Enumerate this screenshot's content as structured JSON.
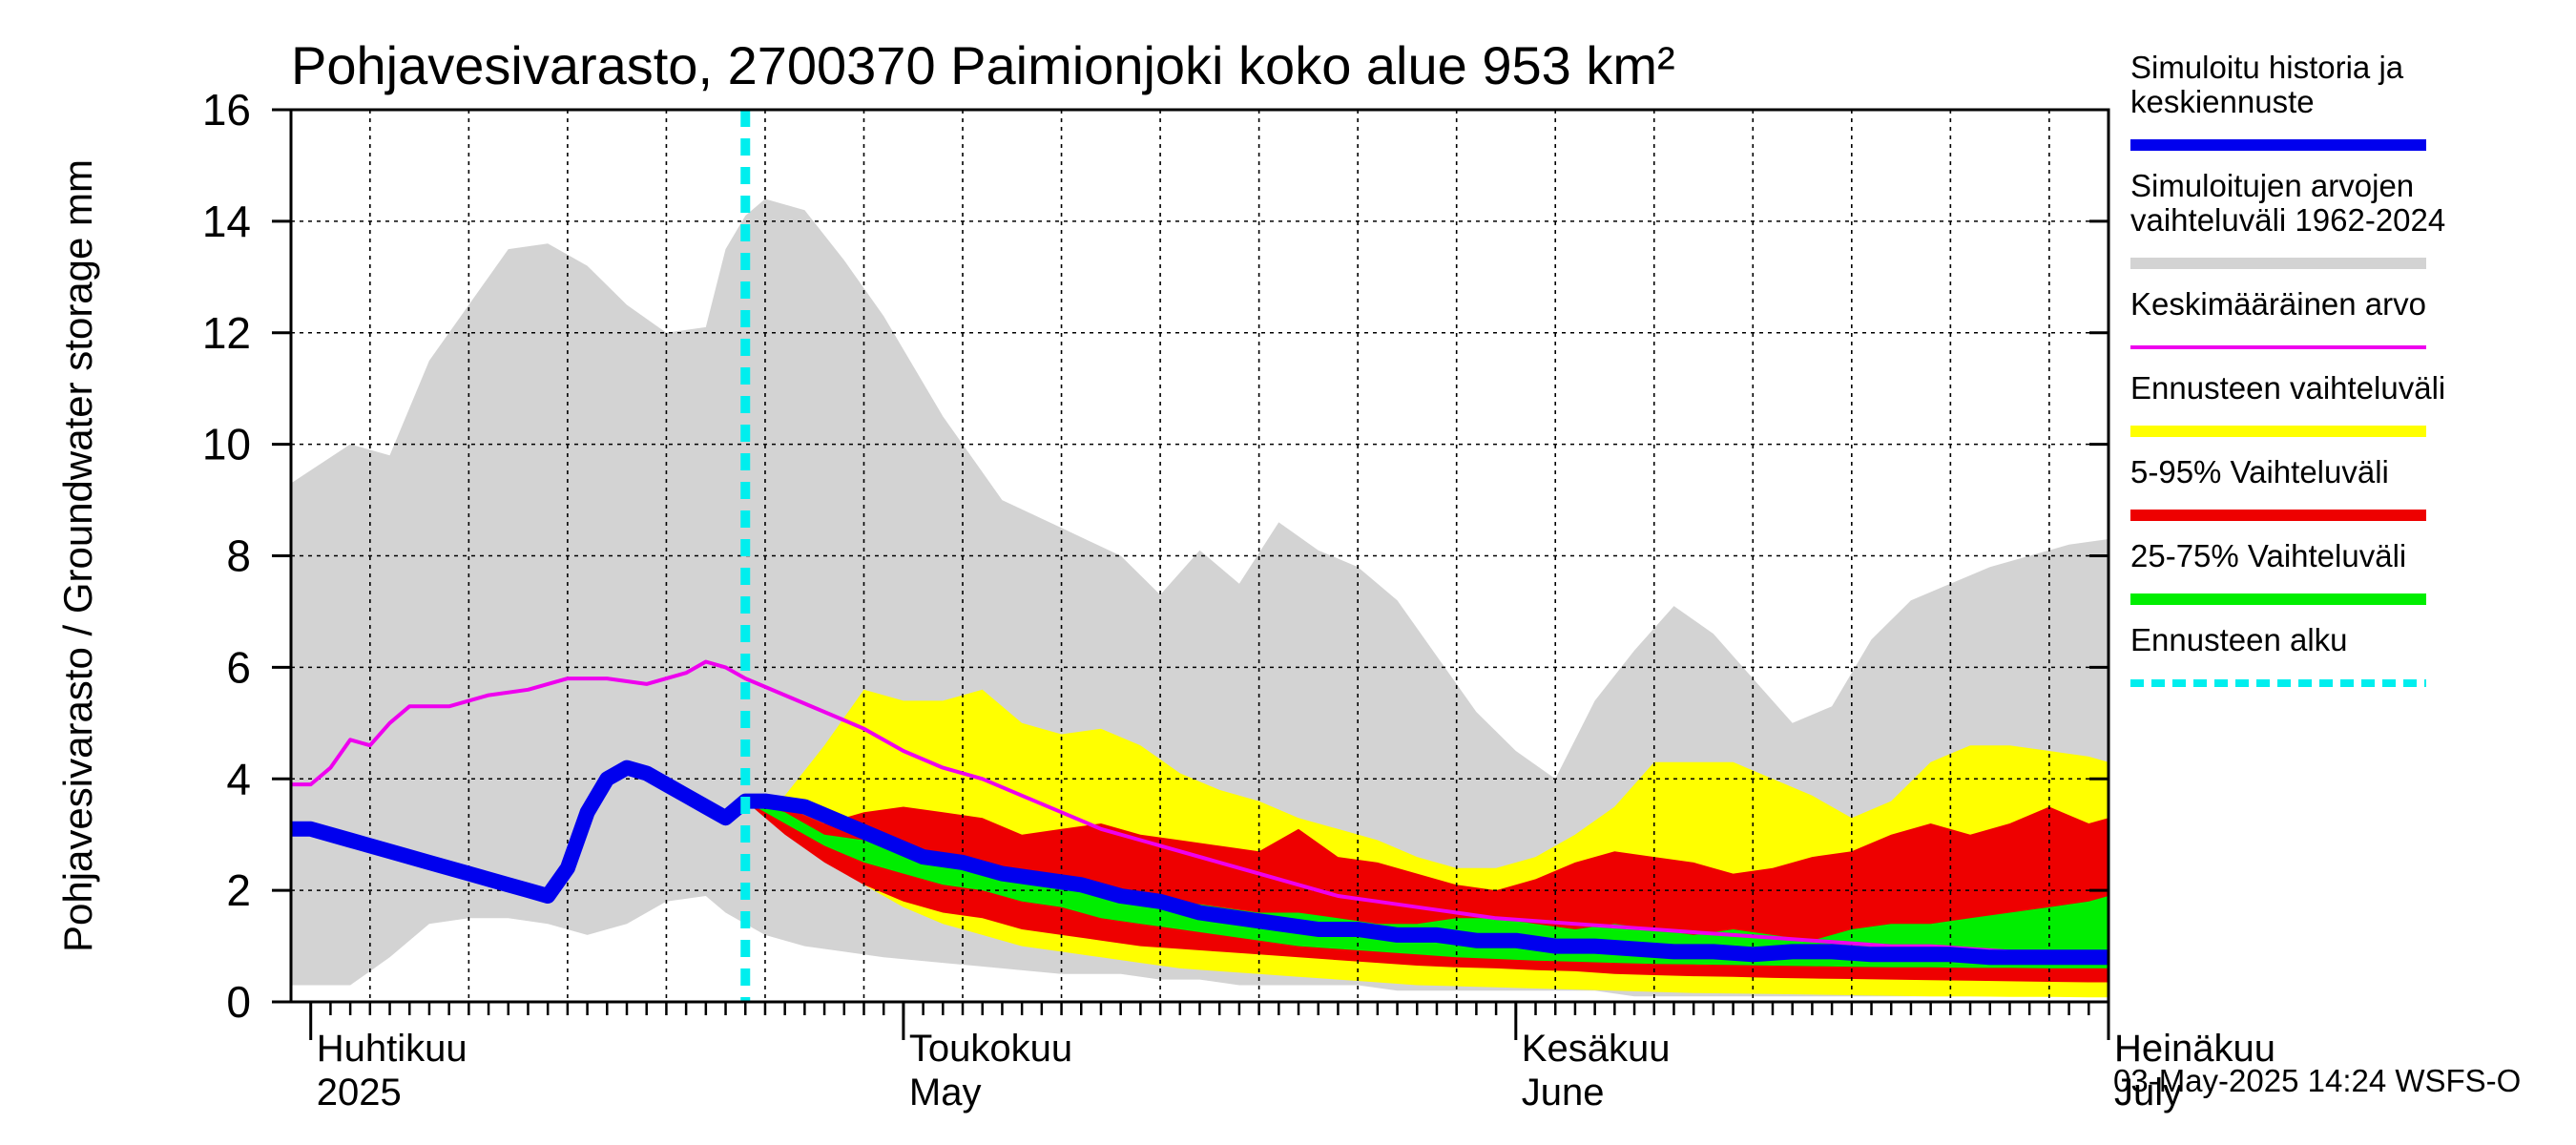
{
  "chart_data": {
    "type": "area",
    "title": "Pohjavesivarasto, 2700370 Paimionjoki koko alue 953 km²",
    "ylabel": "Pohjavesivarasto / Groundwater storage   mm",
    "ylim": [
      0,
      16
    ],
    "yticks": [
      0,
      2,
      4,
      6,
      8,
      10,
      12,
      14,
      16
    ],
    "x_unit": "day of year",
    "xlim": [
      90,
      182
    ],
    "month_ticks": [
      {
        "day": 91,
        "fi": "Huhtikuu",
        "en": "2025"
      },
      {
        "day": 121,
        "fi": "Toukokuu",
        "en": "May"
      },
      {
        "day": 152,
        "fi": "Kesäkuu",
        "en": "June"
      },
      {
        "day": 182,
        "fi": "Heinäkuu",
        "en": "July"
      }
    ],
    "forecast_start_day": 113,
    "timestamp": "03-May-2025 14:24 WSFS-O",
    "legend": [
      {
        "label": "Simuloitu historia ja keskiennuste",
        "color": "#0000ee",
        "style": "thick"
      },
      {
        "label": "Simuloitujen arvojen vaihteluväli 1962-2024",
        "color": "#d3d3d3",
        "style": "band"
      },
      {
        "label": "Keskimääräinen arvo",
        "color": "#ee00ee",
        "style": "line"
      },
      {
        "label": "Ennusteen vaihteluväli",
        "color": "#ffff00",
        "style": "band"
      },
      {
        "label": "5-95% Vaihteluväli",
        "color": "#ee0000",
        "style": "band"
      },
      {
        "label": "25-75% Vaihteluväli",
        "color": "#00ee00",
        "style": "band"
      },
      {
        "label": "Ennusteen alku",
        "color": "#00eeee",
        "style": "dashed"
      }
    ],
    "series": [
      {
        "name": "Simuloitujen arvojen vaihteluväli 1962-2024",
        "color": "#d3d3d3",
        "x": [
          90,
          93,
          95,
          97,
          99,
          101,
          103,
          105,
          107,
          109,
          111,
          112,
          113,
          114,
          116,
          118,
          120,
          123,
          126,
          129,
          132,
          134,
          136,
          138,
          140,
          142,
          144,
          146,
          148,
          150,
          152,
          154,
          156,
          158,
          160,
          162,
          164,
          166,
          168,
          170,
          172,
          174,
          176,
          178,
          180,
          182
        ],
        "upper": [
          9.3,
          10.0,
          9.8,
          11.5,
          12.5,
          13.5,
          13.6,
          13.2,
          12.5,
          12.0,
          12.1,
          13.5,
          14.1,
          14.4,
          14.2,
          13.3,
          12.3,
          10.5,
          9.0,
          8.5,
          8.0,
          7.3,
          8.1,
          7.5,
          8.6,
          8.1,
          7.8,
          7.2,
          6.2,
          5.2,
          4.5,
          4.0,
          5.4,
          6.3,
          7.1,
          6.6,
          5.8,
          5.0,
          5.3,
          6.5,
          7.2,
          7.5,
          7.8,
          8.0,
          8.2,
          8.3
        ],
        "lower": [
          0.3,
          0.3,
          0.8,
          1.4,
          1.5,
          1.5,
          1.4,
          1.2,
          1.4,
          1.8,
          1.9,
          1.6,
          1.4,
          1.2,
          1.0,
          0.9,
          0.8,
          0.7,
          0.6,
          0.5,
          0.5,
          0.4,
          0.4,
          0.3,
          0.3,
          0.3,
          0.3,
          0.2,
          0.2,
          0.2,
          0.2,
          0.2,
          0.2,
          0.1,
          0.1,
          0.1,
          0.1,
          0.1,
          0.1,
          0.1,
          0.1,
          0.1,
          0.1,
          0.1,
          0.1,
          0.1
        ]
      },
      {
        "name": "Ennusteen vaihteluväli",
        "color": "#ffff00",
        "x": [
          113,
          115,
          117,
          119,
          121,
          123,
          125,
          127,
          129,
          131,
          133,
          135,
          137,
          139,
          141,
          143,
          145,
          147,
          149,
          151,
          153,
          155,
          157,
          159,
          161,
          163,
          165,
          167,
          169,
          171,
          173,
          175,
          177,
          179,
          181,
          182
        ],
        "upper": [
          3.6,
          3.7,
          4.6,
          5.6,
          5.4,
          5.4,
          5.6,
          5.0,
          4.8,
          4.9,
          4.6,
          4.1,
          3.8,
          3.6,
          3.3,
          3.1,
          2.9,
          2.6,
          2.4,
          2.4,
          2.6,
          3.0,
          3.5,
          4.3,
          4.3,
          4.3,
          4.0,
          3.7,
          3.3,
          3.6,
          4.3,
          4.6,
          4.6,
          4.5,
          4.4,
          4.3
        ],
        "lower": [
          3.6,
          3.1,
          2.6,
          2.1,
          1.7,
          1.4,
          1.2,
          1.0,
          0.9,
          0.8,
          0.7,
          0.6,
          0.55,
          0.5,
          0.45,
          0.4,
          0.35,
          0.3,
          0.28,
          0.26,
          0.24,
          0.22,
          0.2,
          0.18,
          0.16,
          0.15,
          0.14,
          0.13,
          0.12,
          0.11,
          0.1,
          0.1,
          0.09,
          0.09,
          0.08,
          0.08
        ]
      },
      {
        "name": "5-95% Vaihteluväli",
        "color": "#ee0000",
        "x": [
          113,
          115,
          117,
          119,
          121,
          123,
          125,
          127,
          129,
          131,
          133,
          135,
          137,
          139,
          141,
          143,
          145,
          147,
          149,
          151,
          153,
          155,
          157,
          159,
          161,
          163,
          165,
          167,
          169,
          171,
          173,
          175,
          177,
          179,
          181,
          182
        ],
        "upper": [
          3.6,
          3.5,
          3.2,
          3.4,
          3.5,
          3.4,
          3.3,
          3.0,
          3.1,
          3.2,
          3.0,
          2.9,
          2.8,
          2.7,
          3.1,
          2.6,
          2.5,
          2.3,
          2.1,
          2.0,
          2.2,
          2.5,
          2.7,
          2.6,
          2.5,
          2.3,
          2.4,
          2.6,
          2.7,
          3.0,
          3.2,
          3.0,
          3.2,
          3.5,
          3.2,
          3.3
        ],
        "lower": [
          3.6,
          3.0,
          2.5,
          2.1,
          1.8,
          1.6,
          1.5,
          1.3,
          1.2,
          1.1,
          1.0,
          0.95,
          0.9,
          0.85,
          0.8,
          0.75,
          0.7,
          0.65,
          0.62,
          0.6,
          0.57,
          0.55,
          0.5,
          0.48,
          0.46,
          0.45,
          0.43,
          0.42,
          0.41,
          0.4,
          0.39,
          0.38,
          0.37,
          0.36,
          0.35,
          0.35
        ]
      },
      {
        "name": "25-75% Vaihteluväli",
        "color": "#00ee00",
        "x": [
          113,
          115,
          117,
          119,
          121,
          123,
          125,
          127,
          129,
          131,
          133,
          135,
          137,
          139,
          141,
          143,
          145,
          147,
          149,
          151,
          153,
          155,
          157,
          159,
          161,
          163,
          165,
          167,
          169,
          171,
          173,
          175,
          177,
          179,
          181,
          182
        ],
        "upper": [
          3.6,
          3.4,
          3.0,
          2.9,
          2.8,
          2.6,
          2.5,
          2.3,
          2.2,
          2.1,
          1.9,
          1.8,
          1.7,
          1.6,
          1.6,
          1.5,
          1.4,
          1.4,
          1.5,
          1.5,
          1.4,
          1.3,
          1.4,
          1.3,
          1.2,
          1.3,
          1.2,
          1.1,
          1.3,
          1.4,
          1.4,
          1.5,
          1.6,
          1.7,
          1.8,
          1.9
        ],
        "lower": [
          3.6,
          3.2,
          2.8,
          2.5,
          2.3,
          2.1,
          2.0,
          1.8,
          1.7,
          1.5,
          1.4,
          1.3,
          1.2,
          1.1,
          1.0,
          0.95,
          0.9,
          0.85,
          0.8,
          0.77,
          0.74,
          0.72,
          0.7,
          0.68,
          0.67,
          0.66,
          0.65,
          0.64,
          0.63,
          0.62,
          0.62,
          0.61,
          0.61,
          0.6,
          0.6,
          0.6
        ]
      },
      {
        "name": "Keskimääräinen arvo",
        "color": "#ee00ee",
        "x": [
          90,
          91,
          92,
          93,
          94,
          95,
          96,
          98,
          100,
          102,
          104,
          106,
          108,
          110,
          111,
          112,
          113,
          115,
          117,
          119,
          121,
          123,
          125,
          127,
          129,
          131,
          133,
          135,
          137,
          139,
          141,
          143,
          145,
          147,
          149,
          151,
          153,
          155,
          157,
          159,
          161,
          163,
          165,
          167,
          169,
          171,
          173,
          175,
          177,
          179,
          181,
          182
        ],
        "values": [
          3.9,
          3.9,
          4.2,
          4.7,
          4.6,
          5.0,
          5.3,
          5.3,
          5.5,
          5.6,
          5.8,
          5.8,
          5.7,
          5.9,
          6.1,
          6.0,
          5.8,
          5.5,
          5.2,
          4.9,
          4.5,
          4.2,
          4.0,
          3.7,
          3.4,
          3.1,
          2.9,
          2.7,
          2.5,
          2.3,
          2.1,
          1.9,
          1.8,
          1.7,
          1.6,
          1.5,
          1.45,
          1.4,
          1.35,
          1.3,
          1.25,
          1.2,
          1.15,
          1.1,
          1.05,
          1.0,
          1.0,
          0.95,
          0.9,
          0.9,
          0.85,
          0.8
        ]
      },
      {
        "name": "Simuloitu historia ja keskiennuste",
        "color": "#0000ee",
        "x": [
          90,
          91,
          93,
          95,
          97,
          99,
          101,
          102,
          103,
          104,
          105,
          106,
          107,
          108,
          109,
          110,
          111,
          112,
          113,
          114,
          116,
          118,
          120,
          122,
          124,
          126,
          128,
          130,
          132,
          134,
          136,
          138,
          140,
          142,
          144,
          146,
          148,
          150,
          152,
          154,
          156,
          158,
          160,
          162,
          164,
          166,
          168,
          170,
          172,
          174,
          176,
          178,
          180,
          182
        ],
        "values": [
          3.1,
          3.1,
          2.9,
          2.7,
          2.5,
          2.3,
          2.1,
          2.0,
          1.9,
          2.4,
          3.4,
          4.0,
          4.2,
          4.1,
          3.9,
          3.7,
          3.5,
          3.3,
          3.6,
          3.6,
          3.5,
          3.2,
          2.9,
          2.6,
          2.5,
          2.3,
          2.2,
          2.1,
          1.9,
          1.8,
          1.6,
          1.5,
          1.4,
          1.3,
          1.3,
          1.2,
          1.2,
          1.1,
          1.1,
          1.0,
          1.0,
          0.95,
          0.9,
          0.9,
          0.85,
          0.9,
          0.9,
          0.85,
          0.85,
          0.85,
          0.8,
          0.8,
          0.8,
          0.8
        ]
      }
    ]
  }
}
